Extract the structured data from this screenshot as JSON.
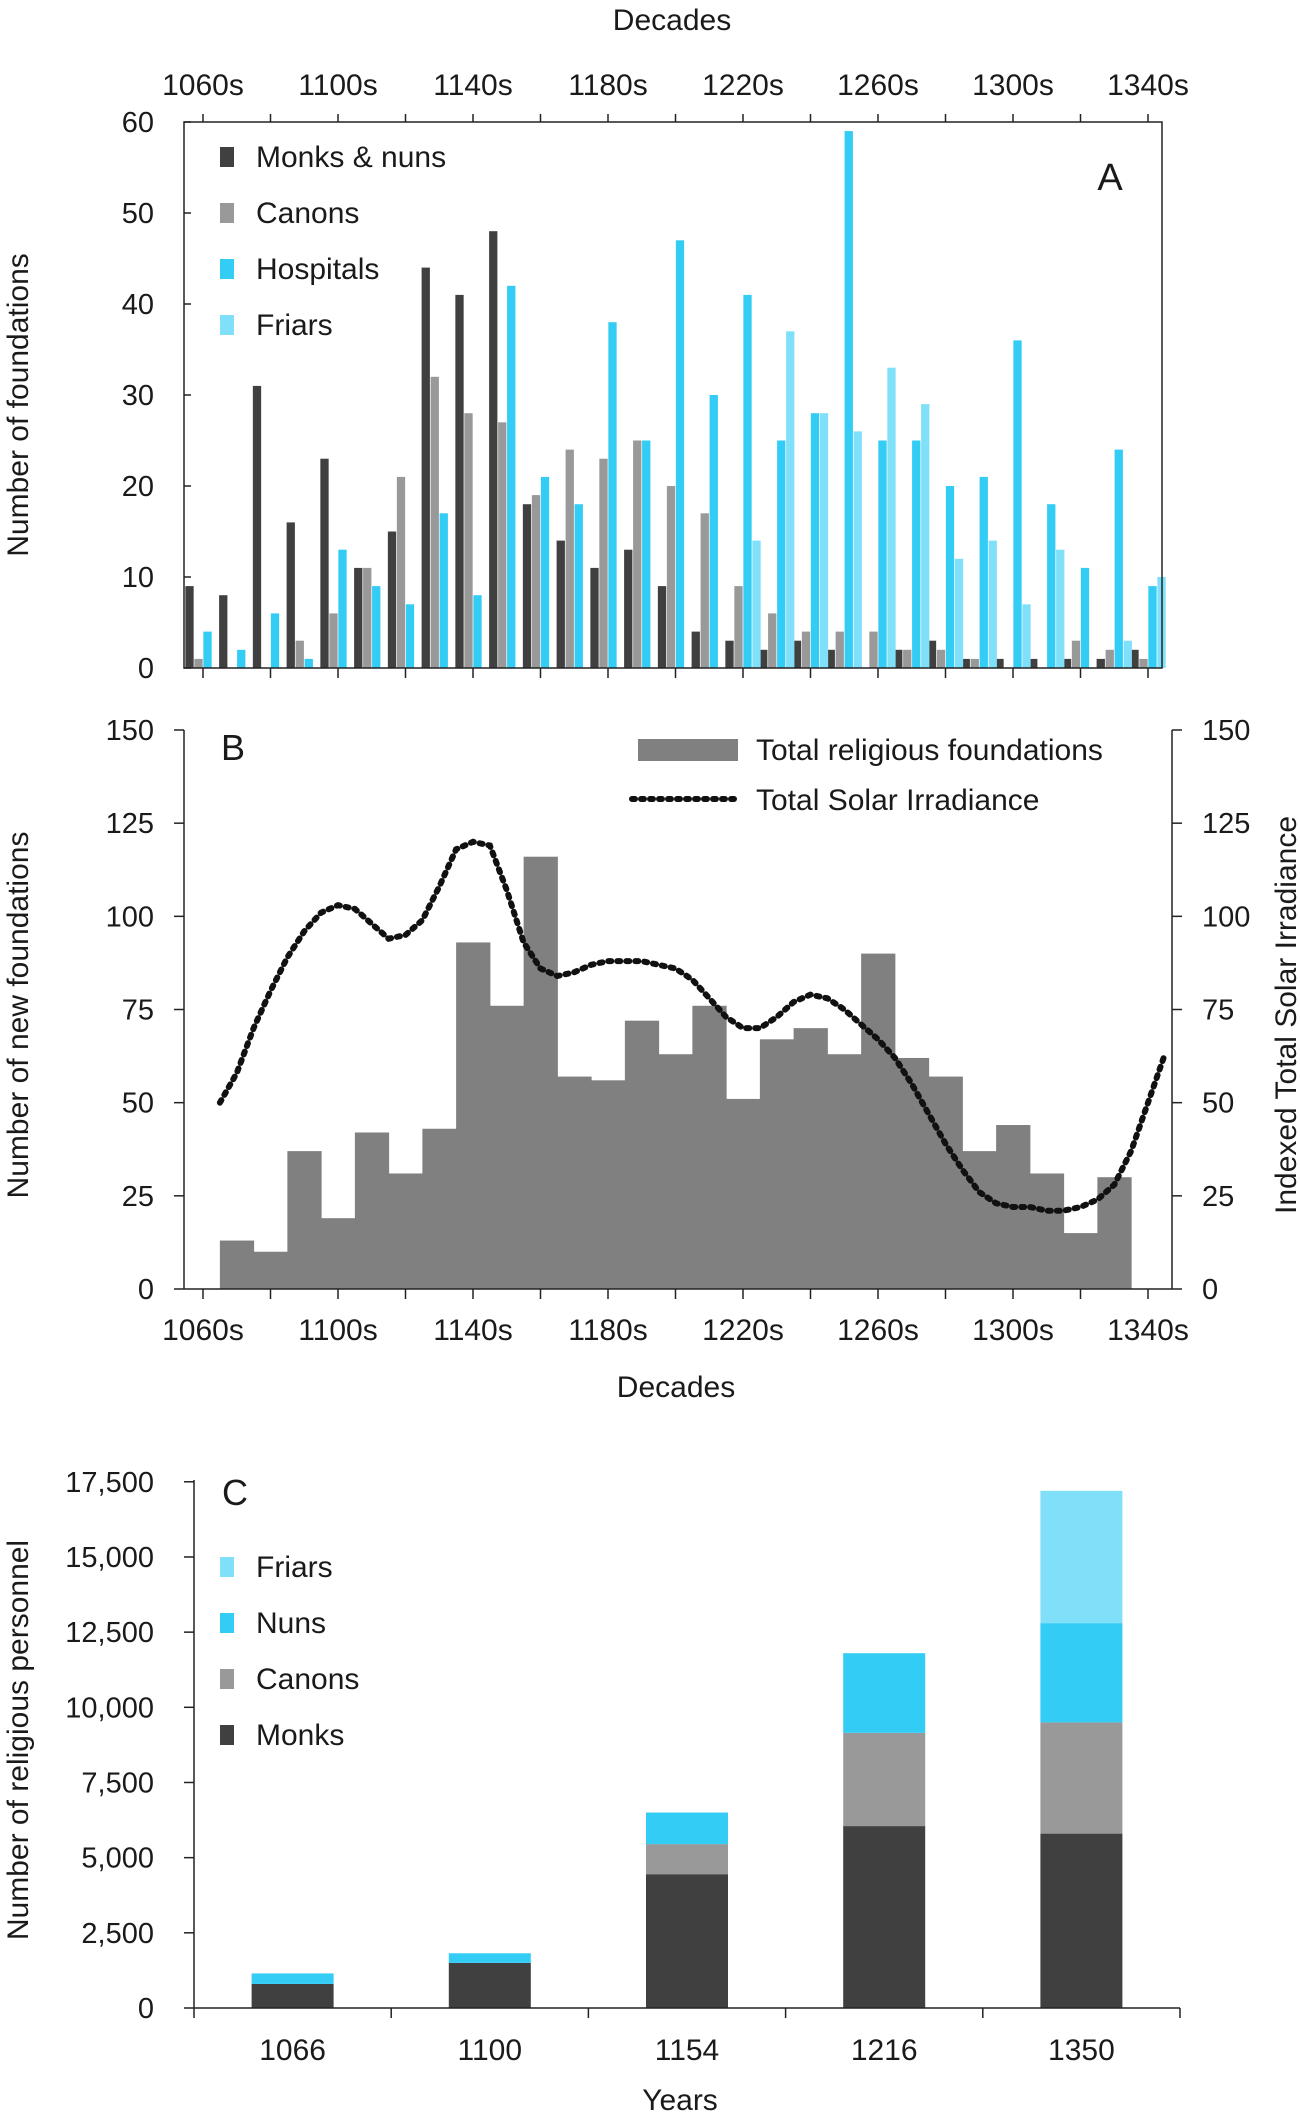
{
  "colors": {
    "monks_nuns": "#404040",
    "canons": "#999999",
    "hospitals": "#33ccf5",
    "friars": "#80e0fa",
    "total": "#808080",
    "tsi": "#111111"
  },
  "chart_data": [
    {
      "type": "bar",
      "panel": "A",
      "title": "",
      "x_top_title": "Decades",
      "xlabel": "Decades",
      "ylabel": "Number of foundations",
      "ylim": [
        0,
        60
      ],
      "yticks": [
        0,
        10,
        20,
        30,
        40,
        50,
        60
      ],
      "categories": [
        "1060s",
        "1070s",
        "1080s",
        "1090s",
        "1100s",
        "1110s",
        "1120s",
        "1130s",
        "1140s",
        "1150s",
        "1160s",
        "1170s",
        "1180s",
        "1190s",
        "1200s",
        "1210s",
        "1220s",
        "1230s",
        "1240s",
        "1250s",
        "1260s",
        "1270s",
        "1280s",
        "1290s",
        "1300s",
        "1310s",
        "1320s",
        "1330s",
        "1340s"
      ],
      "xtick_labels": [
        "1060s",
        "1100s",
        "1140s",
        "1180s",
        "1220s",
        "1260s",
        "1300s",
        "1340s"
      ],
      "legend": [
        "Monks & nuns",
        "Canons",
        "Hospitals",
        "Friars"
      ],
      "series": [
        {
          "name": "Monks & nuns",
          "color_key": "monks_nuns",
          "values": [
            9,
            8,
            31,
            16,
            23,
            11,
            15,
            44,
            41,
            48,
            18,
            14,
            11,
            13,
            9,
            4,
            3,
            2,
            3,
            2,
            0,
            2,
            3,
            1,
            1,
            1,
            1,
            1,
            2
          ]
        },
        {
          "name": "Canons",
          "color_key": "canons",
          "values": [
            1,
            0,
            0,
            3,
            6,
            11,
            21,
            32,
            28,
            27,
            19,
            24,
            23,
            25,
            20,
            17,
            9,
            6,
            4,
            4,
            4,
            2,
            2,
            1,
            0,
            0,
            3,
            2,
            1
          ]
        },
        {
          "name": "Hospitals",
          "color_key": "hospitals",
          "values": [
            4,
            2,
            6,
            1,
            13,
            9,
            7,
            17,
            8,
            42,
            21,
            18,
            38,
            25,
            47,
            30,
            41,
            25,
            28,
            59,
            25,
            25,
            20,
            21,
            36,
            18,
            11,
            24,
            9
          ]
        },
        {
          "name": "Friars",
          "color_key": "friars",
          "values": [
            0,
            0,
            0,
            0,
            0,
            0,
            0,
            0,
            0,
            0,
            0,
            0,
            0,
            0,
            0,
            0,
            14,
            37,
            28,
            26,
            33,
            29,
            12,
            14,
            7,
            13,
            0,
            3,
            10
          ]
        }
      ],
      "annotation": "A"
    },
    {
      "type": "bar+line",
      "panel": "B",
      "xlabel": "Decades",
      "ylabel": "Number of new foundations",
      "y2label": "Indexed Total Solar Irradiance",
      "ylim": [
        0,
        150
      ],
      "y2lim": [
        0,
        150
      ],
      "yticks": [
        0,
        25,
        50,
        75,
        100,
        125,
        150
      ],
      "y2ticks": [
        0,
        25,
        50,
        75,
        100,
        125,
        150
      ],
      "xtick_labels": [
        "1060s",
        "1100s",
        "1140s",
        "1180s",
        "1220s",
        "1260s",
        "1300s",
        "1340s"
      ],
      "legend": [
        "Total religious foundations",
        "Total Solar Irradiance"
      ],
      "series": [
        {
          "name": "Total religious foundations",
          "color_key": "total",
          "decades": [
            1070,
            1080,
            1090,
            1100,
            1110,
            1120,
            1130,
            1140,
            1150,
            1160,
            1170,
            1180,
            1190,
            1200,
            1210,
            1220,
            1230,
            1240,
            1250,
            1260,
            1270,
            1280,
            1290,
            1300,
            1310,
            1320,
            1330
          ],
          "values": [
            13,
            10,
            37,
            19,
            42,
            31,
            43,
            93,
            76,
            116,
            57,
            56,
            72,
            63,
            76,
            51,
            67,
            70,
            63,
            90,
            62,
            57,
            37,
            44,
            31,
            15,
            30
          ]
        },
        {
          "name": "Total Solar Irradiance",
          "color_key": "tsi",
          "style": "dotted",
          "x": [
            1065,
            1070,
            1075,
            1080,
            1085,
            1090,
            1095,
            1100,
            1105,
            1110,
            1115,
            1120,
            1125,
            1130,
            1135,
            1140,
            1145,
            1150,
            1155,
            1160,
            1165,
            1170,
            1175,
            1180,
            1185,
            1190,
            1195,
            1200,
            1205,
            1210,
            1215,
            1220,
            1225,
            1230,
            1235,
            1240,
            1245,
            1250,
            1255,
            1260,
            1265,
            1270,
            1275,
            1280,
            1285,
            1290,
            1295,
            1300,
            1305,
            1310,
            1315,
            1320,
            1325,
            1330,
            1335,
            1340,
            1345
          ],
          "values": [
            50,
            58,
            70,
            80,
            89,
            96,
            101,
            103,
            102,
            98,
            94,
            95,
            99,
            108,
            118,
            120,
            119,
            107,
            93,
            86,
            84,
            85,
            87,
            88,
            88,
            88,
            87,
            86,
            83,
            78,
            73,
            70,
            70,
            73,
            77,
            79,
            78,
            75,
            71,
            67,
            62,
            55,
            47,
            39,
            32,
            26,
            23,
            22,
            22,
            21,
            21,
            22,
            24,
            28,
            37,
            50,
            63
          ]
        }
      ],
      "annotation": "B"
    },
    {
      "type": "stacked_bar",
      "panel": "C",
      "xlabel": "Years",
      "ylabel": "Number of religious personnel",
      "ylim": [
        0,
        17500
      ],
      "yticks": [
        0,
        2500,
        5000,
        7500,
        10000,
        12500,
        15000,
        17500
      ],
      "ytick_labels": [
        "0",
        "2,500",
        "5,000",
        "7,500",
        "10,000",
        "12,500",
        "15,000",
        "17,500"
      ],
      "categories": [
        "1066",
        "1100",
        "1154",
        "1216",
        "1350"
      ],
      "legend": [
        "Friars",
        "Nuns",
        "Canons",
        "Monks"
      ],
      "series": [
        {
          "name": "Monks",
          "color_key": "monks_nuns",
          "values": [
            800,
            1500,
            4450,
            6050,
            5800
          ]
        },
        {
          "name": "Canons",
          "color_key": "canons",
          "values": [
            0,
            0,
            1000,
            3100,
            3700
          ]
        },
        {
          "name": "Nuns",
          "color_key": "hospitals",
          "values": [
            350,
            320,
            1050,
            2650,
            3300
          ]
        },
        {
          "name": "Friars",
          "color_key": "friars",
          "values": [
            0,
            0,
            0,
            0,
            4400
          ]
        }
      ],
      "annotation": "C"
    }
  ]
}
